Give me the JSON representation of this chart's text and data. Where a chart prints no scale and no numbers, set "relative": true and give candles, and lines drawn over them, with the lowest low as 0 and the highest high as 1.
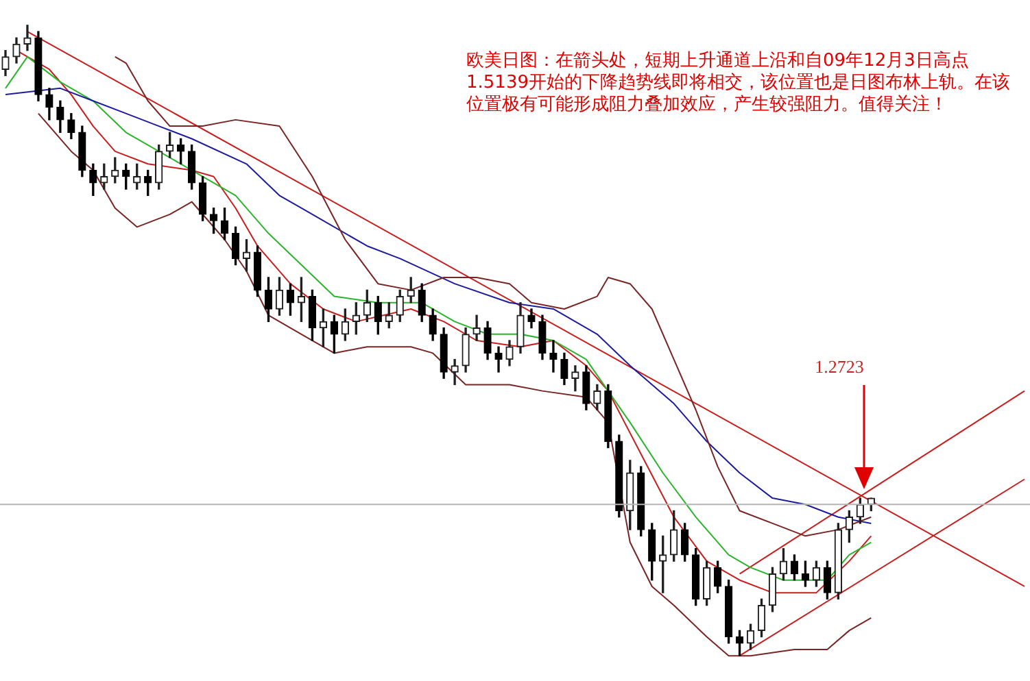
{
  "chart_data": {
    "type": "candlestick",
    "relative": true,
    "title": "欧美日图：在箭头处，短期上升通道上沿和自09年12月3日高点1.5139开始的下降趋势线即将相交，该位置也是日图布林上轨。在该位置极有可能形成阻力叠加效应，产生较强阻力。值得关注！",
    "categories": [
      null,
      null,
      null,
      null,
      null,
      null,
      null,
      null,
      null,
      null,
      null,
      null,
      null,
      null,
      null,
      null,
      null,
      null,
      null,
      null,
      null,
      null,
      null,
      null,
      null,
      null,
      null,
      null,
      null,
      null,
      null,
      null,
      null,
      null,
      null,
      null,
      null,
      null,
      null,
      null,
      null,
      null,
      null,
      null,
      null,
      null,
      null,
      null,
      null,
      null,
      null,
      null,
      null,
      null,
      null,
      null,
      null,
      null,
      null,
      null,
      null,
      null,
      null,
      null,
      null,
      null,
      null,
      null,
      null,
      null,
      null,
      null,
      null,
      null,
      null,
      null,
      null,
      null,
      null,
      null,
      null,
      null,
      null,
      null,
      null,
      null,
      null,
      null,
      null,
      null,
      null,
      null,
      null,
      null
    ],
    "ohlc": [
      [
        0.93,
        0.96,
        0.92,
        0.95
      ],
      [
        0.95,
        0.98,
        0.94,
        0.97
      ],
      [
        0.97,
        1.0,
        0.96,
        0.98
      ],
      [
        0.98,
        0.99,
        0.88,
        0.89
      ],
      [
        0.89,
        0.9,
        0.85,
        0.87
      ],
      [
        0.87,
        0.88,
        0.83,
        0.85
      ],
      [
        0.85,
        0.86,
        0.82,
        0.83
      ],
      [
        0.83,
        0.84,
        0.76,
        0.77
      ],
      [
        0.77,
        0.78,
        0.73,
        0.75
      ],
      [
        0.75,
        0.78,
        0.74,
        0.76
      ],
      [
        0.76,
        0.79,
        0.75,
        0.77
      ],
      [
        0.77,
        0.78,
        0.74,
        0.76
      ],
      [
        0.75,
        0.78,
        0.74,
        0.76
      ],
      [
        0.76,
        0.77,
        0.73,
        0.75
      ],
      [
        0.75,
        0.81,
        0.74,
        0.8
      ],
      [
        0.8,
        0.83,
        0.79,
        0.81
      ],
      [
        0.81,
        0.82,
        0.78,
        0.8
      ],
      [
        0.8,
        0.81,
        0.74,
        0.75
      ],
      [
        0.75,
        0.76,
        0.69,
        0.7
      ],
      [
        0.7,
        0.71,
        0.67,
        0.69
      ],
      [
        0.69,
        0.71,
        0.66,
        0.67
      ],
      [
        0.67,
        0.68,
        0.62,
        0.63
      ],
      [
        0.63,
        0.66,
        0.61,
        0.64
      ],
      [
        0.64,
        0.65,
        0.57,
        0.58
      ],
      [
        0.58,
        0.6,
        0.53,
        0.55
      ],
      [
        0.55,
        0.6,
        0.54,
        0.58
      ],
      [
        0.58,
        0.59,
        0.54,
        0.56
      ],
      [
        0.56,
        0.6,
        0.53,
        0.57
      ],
      [
        0.57,
        0.58,
        0.5,
        0.52
      ],
      [
        0.52,
        0.55,
        0.49,
        0.53
      ],
      [
        0.53,
        0.54,
        0.48,
        0.51
      ],
      [
        0.51,
        0.55,
        0.5,
        0.53
      ],
      [
        0.53,
        0.56,
        0.51,
        0.54
      ],
      [
        0.54,
        0.58,
        0.53,
        0.56
      ],
      [
        0.56,
        0.57,
        0.51,
        0.53
      ],
      [
        0.53,
        0.56,
        0.52,
        0.54
      ],
      [
        0.54,
        0.58,
        0.53,
        0.57
      ],
      [
        0.57,
        0.6,
        0.56,
        0.58
      ],
      [
        0.58,
        0.59,
        0.53,
        0.54
      ],
      [
        0.54,
        0.55,
        0.5,
        0.51
      ],
      [
        0.51,
        0.52,
        0.44,
        0.45
      ],
      [
        0.45,
        0.47,
        0.43,
        0.46
      ],
      [
        0.46,
        0.52,
        0.45,
        0.51
      ],
      [
        0.51,
        0.54,
        0.5,
        0.52
      ],
      [
        0.52,
        0.53,
        0.47,
        0.48
      ],
      [
        0.48,
        0.49,
        0.45,
        0.47
      ],
      [
        0.47,
        0.5,
        0.46,
        0.49
      ],
      [
        0.49,
        0.56,
        0.48,
        0.54
      ],
      [
        0.54,
        0.55,
        0.52,
        0.53
      ],
      [
        0.53,
        0.54,
        0.47,
        0.48
      ],
      [
        0.48,
        0.5,
        0.45,
        0.47
      ],
      [
        0.47,
        0.48,
        0.43,
        0.44
      ],
      [
        0.44,
        0.46,
        0.42,
        0.45
      ],
      [
        0.45,
        0.46,
        0.39,
        0.4
      ],
      [
        0.4,
        0.43,
        0.39,
        0.42
      ],
      [
        0.42,
        0.43,
        0.33,
        0.34
      ],
      [
        0.34,
        0.35,
        0.22,
        0.23
      ],
      [
        0.23,
        0.31,
        0.2,
        0.29
      ],
      [
        0.29,
        0.3,
        0.19,
        0.2
      ],
      [
        0.2,
        0.21,
        0.12,
        0.15
      ],
      [
        0.15,
        0.19,
        0.1,
        0.16
      ],
      [
        0.16,
        0.23,
        0.15,
        0.2
      ],
      [
        0.2,
        0.21,
        0.15,
        0.16
      ],
      [
        0.16,
        0.17,
        0.08,
        0.09
      ],
      [
        0.09,
        0.15,
        0.08,
        0.14
      ],
      [
        0.14,
        0.15,
        0.1,
        0.11
      ],
      [
        0.11,
        0.12,
        0.02,
        0.03
      ],
      [
        0.03,
        0.04,
        0.0,
        0.02
      ],
      [
        0.02,
        0.05,
        0.01,
        0.04
      ],
      [
        0.04,
        0.09,
        0.03,
        0.08
      ],
      [
        0.08,
        0.14,
        0.07,
        0.13
      ],
      [
        0.13,
        0.17,
        0.12,
        0.15
      ],
      [
        0.15,
        0.16,
        0.12,
        0.13
      ],
      [
        0.13,
        0.15,
        0.11,
        0.12
      ],
      [
        0.12,
        0.15,
        0.11,
        0.14
      ],
      [
        0.14,
        0.15,
        0.09,
        0.1
      ],
      [
        0.1,
        0.21,
        0.09,
        0.2
      ],
      [
        0.2,
        0.23,
        0.18,
        0.22
      ],
      [
        0.22,
        0.25,
        0.21,
        0.24
      ],
      [
        0.24,
        0.25,
        0.23,
        0.25
      ],
      null,
      null,
      null,
      null,
      null,
      null,
      null,
      null,
      null,
      null,
      null,
      null,
      null,
      null
    ],
    "series": [
      {
        "type": "line",
        "color": "#7a2424",
        "values": [
          null,
          null,
          null,
          null,
          null,
          null,
          null,
          null,
          null,
          null,
          0.95,
          0.94,
          null,
          0.88,
          null,
          0.84,
          null,
          null,
          0.84,
          null,
          null,
          0.85,
          null,
          null,
          null,
          0.84,
          null,
          null,
          0.76,
          null,
          null,
          0.66,
          null,
          null,
          0.59,
          null,
          null,
          0.58,
          null,
          null,
          0.6,
          null,
          null,
          0.6,
          null,
          null,
          0.59,
          null,
          0.56,
          null,
          null,
          0.55,
          null,
          null,
          0.57,
          0.6,
          null,
          0.59,
          null,
          0.55,
          null,
          0.47,
          null,
          0.39,
          null,
          0.3,
          null,
          0.23,
          null,
          null,
          0.21,
          null,
          null,
          0.19,
          null,
          null,
          0.2,
          null,
          null,
          0.22,
          null,
          null,
          null,
          null,
          null,
          null,
          null,
          null,
          null,
          null,
          null,
          null,
          null,
          null
        ]
      },
      {
        "type": "line",
        "color": "#7a2424",
        "values": [
          null,
          null,
          null,
          0.86,
          null,
          null,
          0.8,
          null,
          0.77,
          null,
          0.71,
          null,
          0.68,
          null,
          null,
          0.7,
          null,
          0.72,
          null,
          null,
          0.66,
          null,
          0.61,
          null,
          0.54,
          null,
          null,
          0.51,
          null,
          null,
          0.48,
          null,
          null,
          0.49,
          null,
          null,
          null,
          0.49,
          null,
          0.48,
          null,
          null,
          0.43,
          null,
          null,
          null,
          0.43,
          null,
          null,
          0.42,
          null,
          null,
          null,
          0.41,
          null,
          0.37,
          null,
          0.18,
          null,
          0.11,
          null,
          0.08,
          null,
          null,
          0.03,
          null,
          0.0,
          null,
          0.0,
          null,
          null,
          null,
          0.01,
          null,
          null,
          0.01,
          null,
          0.04,
          null,
          0.06,
          null,
          null,
          null,
          null,
          null,
          null,
          null,
          null,
          null,
          null,
          null,
          null,
          null,
          null
        ]
      },
      {
        "type": "line",
        "color": "#1c1c9c",
        "values": [
          0.89,
          null,
          null,
          null,
          null,
          0.9,
          null,
          null,
          0.88,
          null,
          null,
          0.86,
          null,
          null,
          0.84,
          null,
          null,
          0.82,
          null,
          null,
          null,
          null,
          0.78,
          null,
          null,
          0.73,
          null,
          0.71,
          null,
          null,
          null,
          null,
          null,
          0.65,
          null,
          null,
          0.63,
          null,
          null,
          null,
          null,
          0.59,
          null,
          null,
          null,
          null,
          0.56,
          null,
          null,
          null,
          0.55,
          null,
          null,
          null,
          0.51,
          null,
          null,
          0.46,
          null,
          null,
          null,
          0.4,
          null,
          null,
          0.34,
          null,
          null,
          0.29,
          null,
          null,
          0.25,
          null,
          null,
          0.24,
          null,
          null,
          0.22,
          null,
          null,
          0.21,
          null,
          null,
          null,
          null,
          null,
          null,
          null,
          null,
          null,
          null,
          null,
          null,
          null,
          null
        ]
      },
      {
        "type": "line",
        "color": "#2cb42c",
        "values": [
          0.9,
          null,
          0.95,
          null,
          null,
          0.91,
          null,
          null,
          0.88,
          null,
          null,
          0.83,
          null,
          null,
          0.8,
          null,
          null,
          0.77,
          null,
          null,
          null,
          0.73,
          null,
          null,
          0.67,
          null,
          null,
          0.62,
          null,
          null,
          0.57,
          null,
          null,
          null,
          0.56,
          null,
          null,
          null,
          0.56,
          null,
          null,
          0.53,
          null,
          null,
          0.51,
          null,
          null,
          0.51,
          null,
          null,
          0.5,
          null,
          null,
          0.47,
          null,
          null,
          null,
          0.37,
          null,
          null,
          0.29,
          null,
          null,
          0.22,
          null,
          null,
          0.16,
          null,
          0.14,
          null,
          null,
          0.12,
          null,
          null,
          null,
          0.12,
          null,
          0.16,
          null,
          0.18,
          null,
          null,
          null,
          null,
          null,
          null,
          null,
          null,
          null,
          null,
          null,
          null,
          null,
          null
        ]
      },
      {
        "type": "line",
        "color": "#c81e1e",
        "values": [
          null,
          0.96,
          null,
          null,
          0.93,
          null,
          0.89,
          null,
          0.84,
          null,
          0.8,
          null,
          null,
          0.78,
          null,
          null,
          null,
          0.77,
          null,
          0.76,
          null,
          0.71,
          null,
          0.65,
          null,
          null,
          0.59,
          null,
          null,
          0.55,
          null,
          null,
          0.53,
          null,
          null,
          null,
          null,
          0.55,
          null,
          null,
          0.53,
          null,
          null,
          0.5,
          null,
          null,
          null,
          0.49,
          null,
          null,
          0.5,
          null,
          null,
          0.46,
          null,
          0.42,
          null,
          null,
          0.32,
          null,
          null,
          0.22,
          null,
          null,
          0.15,
          null,
          null,
          0.12,
          null,
          null,
          0.1,
          null,
          null,
          null,
          0.1,
          null,
          null,
          0.15,
          null,
          0.19,
          null,
          null,
          null,
          null,
          null,
          null,
          null,
          null,
          null,
          null,
          null,
          null,
          null,
          null
        ]
      },
      {
        "type": "line",
        "color": "#c81e1e",
        "values": [
          null,
          null,
          0.99,
          null,
          null,
          null,
          null,
          null,
          null,
          null,
          null,
          null,
          null,
          null,
          null,
          null,
          null,
          null,
          null,
          null,
          null,
          null,
          null,
          null,
          null,
          null,
          null,
          null,
          null,
          null,
          null,
          null,
          null,
          null,
          null,
          null,
          null,
          null,
          null,
          null,
          null,
          null,
          null,
          null,
          null,
          null,
          null,
          null,
          null,
          null,
          null,
          null,
          null,
          null,
          null,
          null,
          null,
          null,
          null,
          null,
          null,
          null,
          null,
          null,
          null,
          null,
          null,
          null,
          null,
          null,
          null,
          null,
          null,
          null,
          null,
          null,
          null,
          null,
          null,
          null,
          null,
          null,
          null,
          null,
          null,
          null,
          null,
          null,
          null,
          null,
          null,
          null,
          null,
          0.11
        ]
      },
      {
        "type": "line",
        "color": "#c81e1e",
        "values": [
          null,
          null,
          null,
          null,
          null,
          null,
          null,
          null,
          null,
          null,
          null,
          null,
          null,
          null,
          null,
          null,
          null,
          null,
          null,
          null,
          null,
          null,
          null,
          null,
          null,
          null,
          null,
          null,
          null,
          null,
          null,
          null,
          null,
          null,
          null,
          null,
          null,
          null,
          null,
          null,
          null,
          null,
          null,
          null,
          null,
          null,
          null,
          null,
          null,
          null,
          null,
          null,
          null,
          null,
          null,
          null,
          null,
          null,
          null,
          null,
          null,
          null,
          null,
          null,
          null,
          null,
          null,
          0.13,
          null,
          null,
          null,
          null,
          null,
          null,
          null,
          null,
          null,
          null,
          null,
          null,
          null,
          null,
          null,
          null,
          null,
          null,
          null,
          null,
          null,
          null,
          null,
          null,
          null,
          0.42
        ]
      },
      {
        "type": "line",
        "color": "#c81e1e",
        "values": [
          null,
          null,
          null,
          null,
          null,
          null,
          null,
          null,
          null,
          null,
          null,
          null,
          null,
          null,
          null,
          null,
          null,
          null,
          null,
          null,
          null,
          null,
          null,
          null,
          null,
          null,
          null,
          null,
          null,
          null,
          null,
          null,
          null,
          null,
          null,
          null,
          null,
          null,
          null,
          null,
          null,
          null,
          null,
          null,
          null,
          null,
          null,
          null,
          null,
          null,
          null,
          null,
          null,
          null,
          null,
          null,
          null,
          null,
          null,
          null,
          null,
          null,
          null,
          null,
          null,
          null,
          null,
          0.0,
          null,
          null,
          null,
          null,
          null,
          null,
          null,
          null,
          null,
          null,
          null,
          null,
          null,
          null,
          null,
          null,
          null,
          null,
          null,
          null,
          null,
          null,
          null,
          null,
          null,
          0.28
        ]
      }
    ],
    "ref_lines": [
      {
        "axis": "y",
        "value": 0.24,
        "color": "#b4b4b4"
      }
    ],
    "annotations": [
      "1.2723"
    ]
  }
}
